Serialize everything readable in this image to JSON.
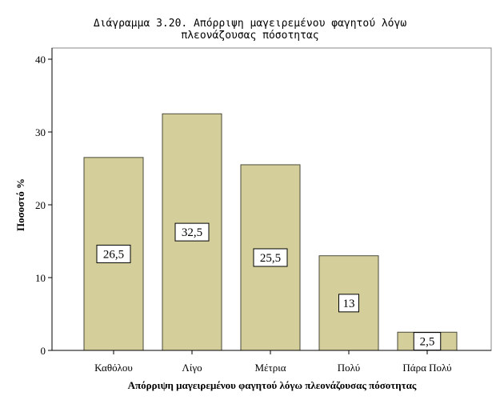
{
  "title": {
    "line1": "Διάγραμμα 3.20. Απόρριψη μαγειρεμένου φαγητού λόγω",
    "line2": "πλεονάζουσας πόσοτητας"
  },
  "colors": {
    "bar_fill": "#d4cf9a",
    "bar_stroke": "#4a4a3a",
    "axis": "#000000",
    "frame": "#888888"
  },
  "chart_data": {
    "type": "bar",
    "categories": [
      "Καθόλου",
      "Λίγο",
      "Μέτρια",
      "Πολύ",
      "Πάρα Πολύ"
    ],
    "values": [
      26.5,
      32.5,
      25.5,
      13,
      2.5
    ],
    "data_labels": [
      "26,5",
      "32,5",
      "25,5",
      "13",
      "2,5"
    ],
    "title": "Διάγραμμα 3.20. Απόρριψη μαγειρεμένου φαγητού λόγω πλεονάζουσας πόσοτητας",
    "xlabel": "Απόρριψη μαγειρεμένου φαγητού λόγω πλεονάζουσας πόσοτητας",
    "ylabel": "Ποσοστό %",
    "ylim": [
      0,
      42
    ],
    "yticks": [
      0,
      10,
      20,
      30,
      40
    ],
    "grid": false,
    "legend": "none"
  }
}
